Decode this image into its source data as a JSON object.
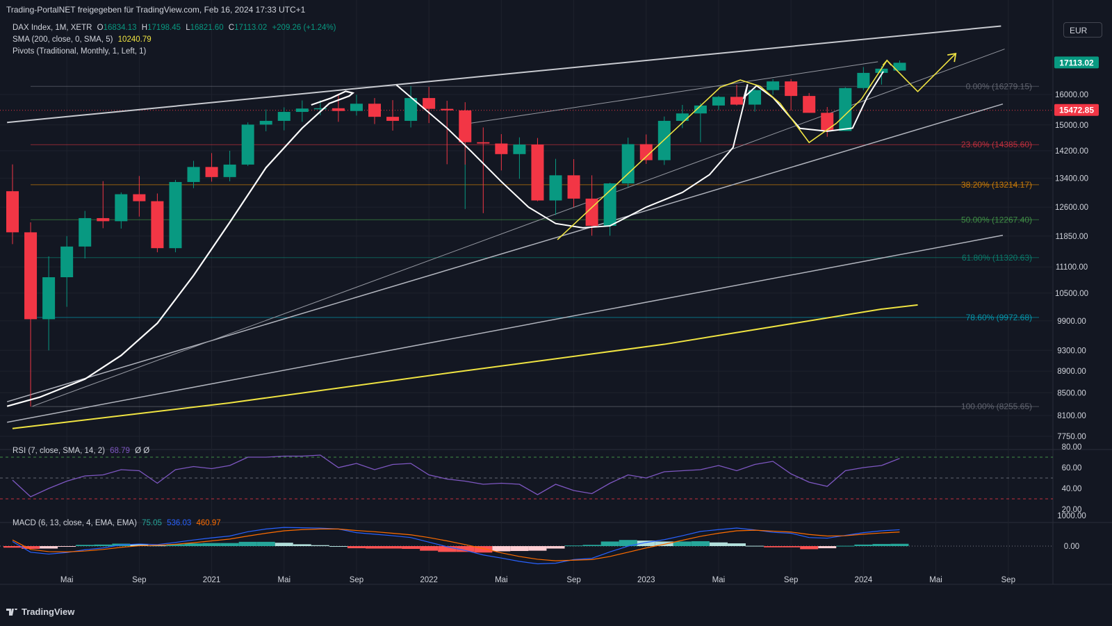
{
  "header": {
    "shared_by": "Trading-PortalNET freigegeben für TradingView.com, Feb 16, 2024 17:33 UTC+1"
  },
  "legend": {
    "symbol": "DAX Index, 1M, XETR",
    "o_label": "O",
    "o": "16834.13",
    "h_label": "H",
    "h": "17198.45",
    "l_label": "L",
    "l": "16821.60",
    "c_label": "C",
    "c": "17113.02",
    "chg": "+209.26 (+1.24%)",
    "sma_label": "SMA (200, close, 0, SMA, 5)",
    "sma_value": "10240.79",
    "pivots_label": "Pivots (Traditional, Monthly, 1, Left, 1)",
    "rsi_label": "RSI (7, close, SMA, 14, 2)",
    "rsi_value": "68.79",
    "rsi_extra": "Ø  Ø",
    "macd_label": "MACD (6, 13, close, 4, EMA, EMA)",
    "macd_hist": "75.05",
    "macd_line": "536.03",
    "macd_signal": "460.97"
  },
  "currency": "EUR",
  "watermark": "TradingView",
  "colors": {
    "bg": "#131722",
    "up": "#089981",
    "down": "#f23645",
    "grid": "#1e222d",
    "text": "#d1d4dc",
    "yellow": "#f0e442",
    "rsi": "#7e57c2",
    "macd": "#2962ff",
    "signal": "#ff6d00"
  },
  "chart_data": {
    "type": "candlestick",
    "price_axis_ticks": [
      7750,
      8100,
      8500,
      8900,
      9300,
      9900,
      10500,
      11100,
      11850,
      12600,
      13400,
      14200,
      15000,
      16000
    ],
    "price_axis_labels": [
      "7750.00",
      "8100.00",
      "8500.00",
      "8900.00",
      "9300.00",
      "9900.00",
      "10500.00",
      "11100.00",
      "11850.00",
      "12600.00",
      "13400.00",
      "14200.00",
      "15000.00",
      "16000.00"
    ],
    "time_labels": [
      "Mai",
      "Sep",
      "2021",
      "Mai",
      "Sep",
      "2022",
      "Mai",
      "Sep",
      "2023",
      "Mai",
      "Sep",
      "2024",
      "Mai",
      "Sep"
    ],
    "time_label_months": [
      3,
      7,
      11,
      15,
      19,
      23,
      27,
      31,
      35,
      39,
      43,
      47,
      51,
      55
    ],
    "last_price_label": "17113.02",
    "pivot_price_label": "15472.85",
    "candles": [
      {
        "o": 13033,
        "h": 13795,
        "l": 11650,
        "c": 11945
      },
      {
        "o": 11945,
        "h": 12200,
        "l": 8255,
        "c": 9935
      },
      {
        "o": 9935,
        "h": 11350,
        "l": 9300,
        "c": 10860
      },
      {
        "o": 10860,
        "h": 11850,
        "l": 10200,
        "c": 11590
      },
      {
        "o": 11590,
        "h": 12500,
        "l": 11300,
        "c": 12310
      },
      {
        "o": 12310,
        "h": 13315,
        "l": 12050,
        "c": 12230
      },
      {
        "o": 12230,
        "h": 13000,
        "l": 12040,
        "c": 12950
      },
      {
        "o": 12950,
        "h": 13460,
        "l": 12350,
        "c": 12760
      },
      {
        "o": 12760,
        "h": 12970,
        "l": 11450,
        "c": 11550
      },
      {
        "o": 11550,
        "h": 13350,
        "l": 11450,
        "c": 13290
      },
      {
        "o": 13290,
        "h": 13900,
        "l": 13120,
        "c": 13720
      },
      {
        "o": 13720,
        "h": 14130,
        "l": 13300,
        "c": 13430
      },
      {
        "o": 13430,
        "h": 14200,
        "l": 13310,
        "c": 13790
      },
      {
        "o": 13790,
        "h": 15080,
        "l": 13750,
        "c": 15010
      },
      {
        "o": 15010,
        "h": 15500,
        "l": 14800,
        "c": 15130
      },
      {
        "o": 15130,
        "h": 15570,
        "l": 14830,
        "c": 15420
      },
      {
        "o": 15420,
        "h": 15800,
        "l": 15100,
        "c": 15530
      },
      {
        "o": 15530,
        "h": 15810,
        "l": 15310,
        "c": 15540
      },
      {
        "o": 15540,
        "h": 16030,
        "l": 15100,
        "c": 15450
      },
      {
        "o": 15450,
        "h": 15990,
        "l": 15300,
        "c": 15690
      },
      {
        "o": 15690,
        "h": 15880,
        "l": 15030,
        "c": 15260
      },
      {
        "o": 15260,
        "h": 15810,
        "l": 14820,
        "c": 15130
      },
      {
        "o": 15130,
        "h": 16290,
        "l": 14920,
        "c": 15880
      },
      {
        "o": 15880,
        "h": 16260,
        "l": 15060,
        "c": 15520
      },
      {
        "o": 15520,
        "h": 15790,
        "l": 13800,
        "c": 15470
      },
      {
        "o": 15470,
        "h": 15740,
        "l": 13790,
        "c": 14460
      },
      {
        "o": 14460,
        "h": 14920,
        "l": 12440,
        "c": 14420
      },
      {
        "o": 14420,
        "h": 14710,
        "l": 13620,
        "c": 14100
      },
      {
        "o": 14100,
        "h": 14610,
        "l": 13380,
        "c": 14390
      },
      {
        "o": 14390,
        "h": 14590,
        "l": 12760,
        "c": 12780
      },
      {
        "o": 12780,
        "h": 13960,
        "l": 12390,
        "c": 13480
      },
      {
        "o": 13480,
        "h": 13950,
        "l": 12600,
        "c": 12830
      },
      {
        "o": 12830,
        "h": 13480,
        "l": 11860,
        "c": 12110
      },
      {
        "o": 12110,
        "h": 13270,
        "l": 11860,
        "c": 13250
      },
      {
        "o": 13250,
        "h": 14600,
        "l": 13150,
        "c": 14400
      },
      {
        "o": 14400,
        "h": 14700,
        "l": 13810,
        "c": 13920
      },
      {
        "o": 13920,
        "h": 15270,
        "l": 13780,
        "c": 15130
      },
      {
        "o": 15130,
        "h": 15650,
        "l": 14900,
        "c": 15370
      },
      {
        "o": 15370,
        "h": 15710,
        "l": 14460,
        "c": 15630
      },
      {
        "o": 15630,
        "h": 15950,
        "l": 15480,
        "c": 15920
      },
      {
        "o": 15920,
        "h": 16330,
        "l": 15630,
        "c": 15660
      },
      {
        "o": 15660,
        "h": 16200,
        "l": 15430,
        "c": 16150
      },
      {
        "o": 16150,
        "h": 16530,
        "l": 15990,
        "c": 16450
      },
      {
        "o": 16450,
        "h": 16530,
        "l": 15470,
        "c": 15950
      },
      {
        "o": 15950,
        "h": 16050,
        "l": 15390,
        "c": 15390
      },
      {
        "o": 15390,
        "h": 15580,
        "l": 14630,
        "c": 14810
      },
      {
        "o": 14810,
        "h": 16250,
        "l": 14810,
        "c": 16220
      },
      {
        "o": 16220,
        "h": 16960,
        "l": 16150,
        "c": 16750
      },
      {
        "o": 16750,
        "h": 17000,
        "l": 16340,
        "c": 16900
      },
      {
        "o": 16834,
        "h": 17198,
        "l": 16822,
        "c": 17113
      }
    ],
    "sma200": [
      [
        0,
        7880
      ],
      [
        12,
        8320
      ],
      [
        24,
        8860
      ],
      [
        36,
        9420
      ],
      [
        48,
        10150
      ],
      [
        50,
        10240
      ]
    ],
    "fib_levels": [
      {
        "label": "0.00% (16279.15)",
        "price": 16279.15,
        "color": "#787b86"
      },
      {
        "label": "23.60% (14385.60)",
        "price": 14385.6,
        "color": "#f23645"
      },
      {
        "label": "38.20% (13214.17)",
        "price": 13214.17,
        "color": "#ff9800"
      },
      {
        "label": "50.00% (12267.40)",
        "price": 12267.4,
        "color": "#4caf50"
      },
      {
        "label": "61.80% (11320.63)",
        "price": 11320.63,
        "color": "#089981"
      },
      {
        "label": "78.60% (9972.68)",
        "price": 9972.68,
        "color": "#00bcd4"
      },
      {
        "label": "100.00% (8255.65)",
        "price": 8255.65,
        "color": "#787b86"
      }
    ],
    "rsi_axis": [
      20,
      40,
      60,
      80
    ],
    "rsi_axis_labels": [
      "20.00",
      "40.00",
      "60.00",
      "80.00"
    ],
    "rsi_levels": [
      70,
      50,
      30
    ],
    "rsi": [
      48,
      32,
      40,
      47,
      52,
      53,
      58,
      57,
      45,
      58,
      61,
      59,
      62,
      70,
      70,
      71,
      71,
      72,
      60,
      64,
      58,
      63,
      64,
      53,
      49,
      47,
      44,
      45,
      44,
      34,
      44,
      38,
      35,
      45,
      53,
      50,
      56,
      57,
      58,
      62,
      57,
      63,
      66,
      54,
      46,
      42,
      57,
      60,
      62,
      68.79
    ],
    "macd_axis_labels": [
      "1000.00",
      "0.00"
    ],
    "macd_axis": [
      1000,
      0
    ],
    "macd_line": [
      150,
      -200,
      -260,
      -210,
      -120,
      -60,
      40,
      70,
      50,
      120,
      200,
      270,
      330,
      470,
      560,
      610,
      600,
      590,
      560,
      440,
      390,
      340,
      280,
      130,
      -20,
      -140,
      -290,
      -390,
      -500,
      -580,
      -560,
      -440,
      -400,
      -190,
      0,
      120,
      210,
      340,
      480,
      540,
      590,
      530,
      450,
      420,
      280,
      260,
      350,
      440,
      500,
      536
    ],
    "macd_signal": [
      200,
      -110,
      -180,
      -190,
      -160,
      -110,
      -40,
      10,
      30,
      60,
      110,
      170,
      230,
      330,
      420,
      500,
      540,
      560,
      560,
      510,
      470,
      420,
      370,
      280,
      170,
      50,
      -80,
      -220,
      -340,
      -430,
      -480,
      -460,
      -440,
      -340,
      -200,
      -60,
      60,
      190,
      320,
      420,
      500,
      520,
      490,
      460,
      380,
      330,
      340,
      390,
      430,
      461
    ],
    "macd_hist": [
      -50,
      -90,
      -80,
      -20,
      40,
      50,
      80,
      60,
      20,
      60,
      90,
      100,
      100,
      140,
      140,
      110,
      60,
      30,
      0,
      -70,
      -80,
      -80,
      -90,
      -150,
      -190,
      -190,
      -210,
      -170,
      -160,
      -150,
      -80,
      20,
      40,
      150,
      200,
      180,
      150,
      150,
      160,
      120,
      90,
      10,
      -40,
      -40,
      -100,
      -70,
      10,
      50,
      70,
      75
    ]
  }
}
